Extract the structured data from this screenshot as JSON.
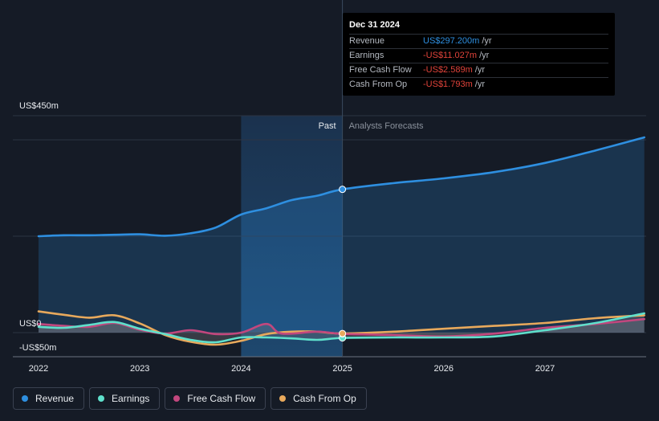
{
  "chart_data": {
    "type": "area",
    "x_ticks": [
      "2022",
      "2023",
      "2024",
      "2025",
      "2026",
      "2027"
    ],
    "y_ticks": [
      "US$450m",
      "US$0",
      "-US$50m"
    ],
    "ylim": [
      -50,
      450
    ],
    "xlim": [
      2021.75,
      2027.98
    ],
    "past_end": 2025.0,
    "highlight_start": 2024.0,
    "section_labels": {
      "past": "Past",
      "forecast": "Analysts Forecasts"
    },
    "grid": true,
    "legend_position": "bottom-left",
    "series": [
      {
        "name": "Revenue",
        "color": "#2e8fe0",
        "fill": true,
        "points": [
          [
            2022.0,
            200
          ],
          [
            2022.25,
            202
          ],
          [
            2022.5,
            202
          ],
          [
            2022.75,
            203
          ],
          [
            2023.0,
            204
          ],
          [
            2023.25,
            201
          ],
          [
            2023.5,
            206
          ],
          [
            2023.75,
            218
          ],
          [
            2024.0,
            245
          ],
          [
            2024.25,
            258
          ],
          [
            2024.5,
            275
          ],
          [
            2024.75,
            284
          ],
          [
            2025.0,
            297.2
          ],
          [
            2025.5,
            310
          ],
          [
            2026.0,
            320
          ],
          [
            2026.5,
            333
          ],
          [
            2027.0,
            352
          ],
          [
            2027.5,
            378
          ],
          [
            2027.98,
            405
          ]
        ]
      },
      {
        "name": "Earnings",
        "color": "#5fe0cc",
        "fill": true,
        "points": [
          [
            2022.0,
            12
          ],
          [
            2022.25,
            10
          ],
          [
            2022.5,
            16
          ],
          [
            2022.75,
            22
          ],
          [
            2023.0,
            8
          ],
          [
            2023.25,
            -3
          ],
          [
            2023.5,
            -15
          ],
          [
            2023.75,
            -20
          ],
          [
            2024.0,
            -10
          ],
          [
            2024.25,
            -10
          ],
          [
            2024.5,
            -12
          ],
          [
            2024.75,
            -15
          ],
          [
            2025.0,
            -11.027
          ],
          [
            2025.5,
            -10
          ],
          [
            2026.0,
            -10
          ],
          [
            2026.5,
            -8
          ],
          [
            2027.0,
            5
          ],
          [
            2027.5,
            20
          ],
          [
            2027.98,
            40
          ]
        ]
      },
      {
        "name": "Free Cash Flow",
        "color": "#c2477e",
        "fill": true,
        "points": [
          [
            2022.0,
            18
          ],
          [
            2022.25,
            14
          ],
          [
            2022.5,
            12
          ],
          [
            2022.75,
            20
          ],
          [
            2023.0,
            6
          ],
          [
            2023.25,
            -2
          ],
          [
            2023.5,
            5
          ],
          [
            2023.75,
            -3
          ],
          [
            2024.0,
            0
          ],
          [
            2024.25,
            18
          ],
          [
            2024.4,
            -2
          ],
          [
            2024.75,
            2
          ],
          [
            2025.0,
            -2.589
          ],
          [
            2025.5,
            -5
          ],
          [
            2026.0,
            -8
          ],
          [
            2026.5,
            -2
          ],
          [
            2027.0,
            10
          ],
          [
            2027.5,
            18
          ],
          [
            2027.98,
            28
          ]
        ]
      },
      {
        "name": "Cash From Op",
        "color": "#e8a95c",
        "fill": false,
        "points": [
          [
            2022.0,
            44
          ],
          [
            2022.25,
            37
          ],
          [
            2022.5,
            31
          ],
          [
            2022.75,
            36
          ],
          [
            2023.0,
            19
          ],
          [
            2023.25,
            -5
          ],
          [
            2023.5,
            -19
          ],
          [
            2023.75,
            -25
          ],
          [
            2024.0,
            -17
          ],
          [
            2024.25,
            -3
          ],
          [
            2024.5,
            2
          ],
          [
            2024.75,
            2
          ],
          [
            2025.0,
            -1.793
          ],
          [
            2025.5,
            2
          ],
          [
            2026.0,
            8
          ],
          [
            2026.5,
            14
          ],
          [
            2027.0,
            20
          ],
          [
            2027.5,
            30
          ],
          [
            2027.98,
            36
          ]
        ]
      }
    ]
  },
  "tooltip": {
    "date": "Dec 31 2024",
    "rows": [
      {
        "name": "Revenue",
        "value": "US$297.200m",
        "unit": "/yr",
        "color": "#2e8fe0"
      },
      {
        "name": "Earnings",
        "value": "-US$11.027m",
        "unit": "/yr",
        "color": "#e0433a"
      },
      {
        "name": "Free Cash Flow",
        "value": "-US$2.589m",
        "unit": "/yr",
        "color": "#e0433a"
      },
      {
        "name": "Cash From Op",
        "value": "-US$1.793m",
        "unit": "/yr",
        "color": "#e0433a"
      }
    ]
  },
  "legend": [
    {
      "label": "Revenue",
      "color": "#2e8fe0"
    },
    {
      "label": "Earnings",
      "color": "#5fe0cc"
    },
    {
      "label": "Free Cash Flow",
      "color": "#c2477e"
    },
    {
      "label": "Cash From Op",
      "color": "#e8a95c"
    }
  ]
}
